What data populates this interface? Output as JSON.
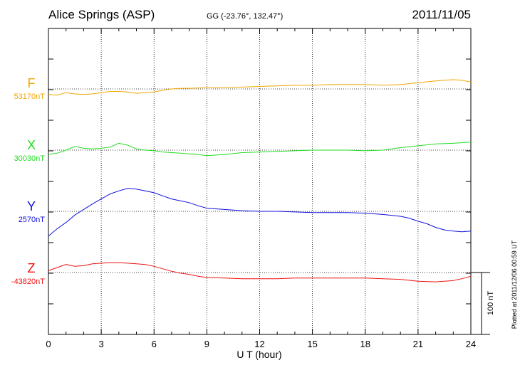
{
  "header": {
    "station": "Alice Springs (ASP)",
    "coords": "GG (-23.76°, 132.47°)",
    "date": "2011/11/05"
  },
  "plotted_note": "Plotted at 2011/12/06 00:59 UT",
  "chart_data": {
    "type": "line",
    "xlabel": "U T (hour)",
    "xlim": [
      0,
      24
    ],
    "xticks": [
      0,
      3,
      6,
      9,
      12,
      15,
      18,
      21,
      24
    ],
    "grid": true,
    "scale_bar": {
      "label": "100 nT",
      "value_nT": 100
    },
    "series": [
      {
        "name": "F",
        "baseline_label": "53170nT",
        "baseline": 53170,
        "color": "#f0a500",
        "x": [
          0,
          0.5,
          1,
          1.5,
          2,
          2.5,
          3,
          3.5,
          4,
          4.5,
          5,
          5.5,
          6,
          6.5,
          7,
          7.5,
          8,
          9,
          10,
          11,
          12,
          13,
          14,
          15,
          16,
          17,
          18,
          19,
          20,
          21,
          22,
          22.5,
          23,
          23.5,
          24
        ],
        "values": [
          -9,
          -10,
          -6,
          -8,
          -9,
          -8,
          -6,
          -4,
          -4,
          -5,
          -7,
          -6,
          -5,
          -2,
          0,
          1,
          1,
          2,
          2,
          3,
          4,
          5,
          6,
          6,
          7,
          7,
          7,
          6,
          7,
          10,
          13,
          14,
          15,
          14,
          11
        ]
      },
      {
        "name": "X",
        "baseline_label": "30030nT",
        "baseline": 30030,
        "color": "#22dd22",
        "x": [
          0,
          0.5,
          1,
          1.5,
          2,
          2.5,
          3,
          3.5,
          4,
          4.5,
          5,
          5.5,
          6,
          6.5,
          7,
          7.5,
          8,
          8.5,
          9,
          10,
          11,
          12,
          13,
          14,
          15,
          16,
          17,
          18,
          19,
          20,
          21,
          22,
          23,
          24
        ],
        "values": [
          -7,
          -5,
          0,
          6,
          3,
          2,
          3,
          5,
          11,
          8,
          2,
          0,
          -1,
          -3,
          -4,
          -5,
          -6,
          -7,
          -9,
          -7,
          -4,
          -3,
          -2,
          -1,
          0,
          0,
          0,
          -1,
          0,
          4,
          7,
          10,
          11,
          13
        ]
      },
      {
        "name": "Y",
        "baseline_label": "2570nT",
        "baseline": 2570,
        "color": "#1010dd",
        "x": [
          0,
          0.5,
          1,
          1.5,
          2,
          2.5,
          3,
          3.5,
          4,
          4.5,
          5,
          5.5,
          6,
          6.5,
          7,
          7.5,
          8,
          8.5,
          9,
          10,
          11,
          12,
          13,
          14,
          15,
          16,
          17,
          18,
          19,
          20,
          20.5,
          21,
          21.5,
          22,
          22.5,
          23,
          23.5,
          24
        ],
        "values": [
          -40,
          -28,
          -18,
          -6,
          3,
          12,
          20,
          28,
          33,
          37,
          36,
          33,
          30,
          25,
          20,
          17,
          14,
          9,
          5,
          3,
          1,
          0,
          0,
          -1,
          -2,
          -2,
          -2,
          -3,
          -5,
          -8,
          -11,
          -16,
          -20,
          -26,
          -30,
          -32,
          -33,
          -32
        ]
      },
      {
        "name": "Z",
        "baseline_label": "-43820nT",
        "baseline": -43820,
        "color": "#ee1111",
        "x": [
          0,
          0.5,
          1,
          1.5,
          2,
          2.5,
          3,
          3.5,
          4,
          4.5,
          5,
          5.5,
          6,
          6.5,
          7,
          7.5,
          8,
          8.5,
          9,
          10,
          11,
          12,
          13,
          14,
          15,
          16,
          17,
          18,
          19,
          20,
          21,
          22,
          23,
          23.5,
          24
        ],
        "values": [
          3,
          8,
          13,
          10,
          11,
          14,
          15,
          16,
          16,
          15,
          14,
          13,
          10,
          6,
          2,
          -1,
          -3,
          -6,
          -8,
          -9,
          -10,
          -10,
          -10,
          -9,
          -9,
          -9,
          -9,
          -9,
          -10,
          -11,
          -14,
          -15,
          -13,
          -10,
          -6
        ]
      }
    ]
  }
}
